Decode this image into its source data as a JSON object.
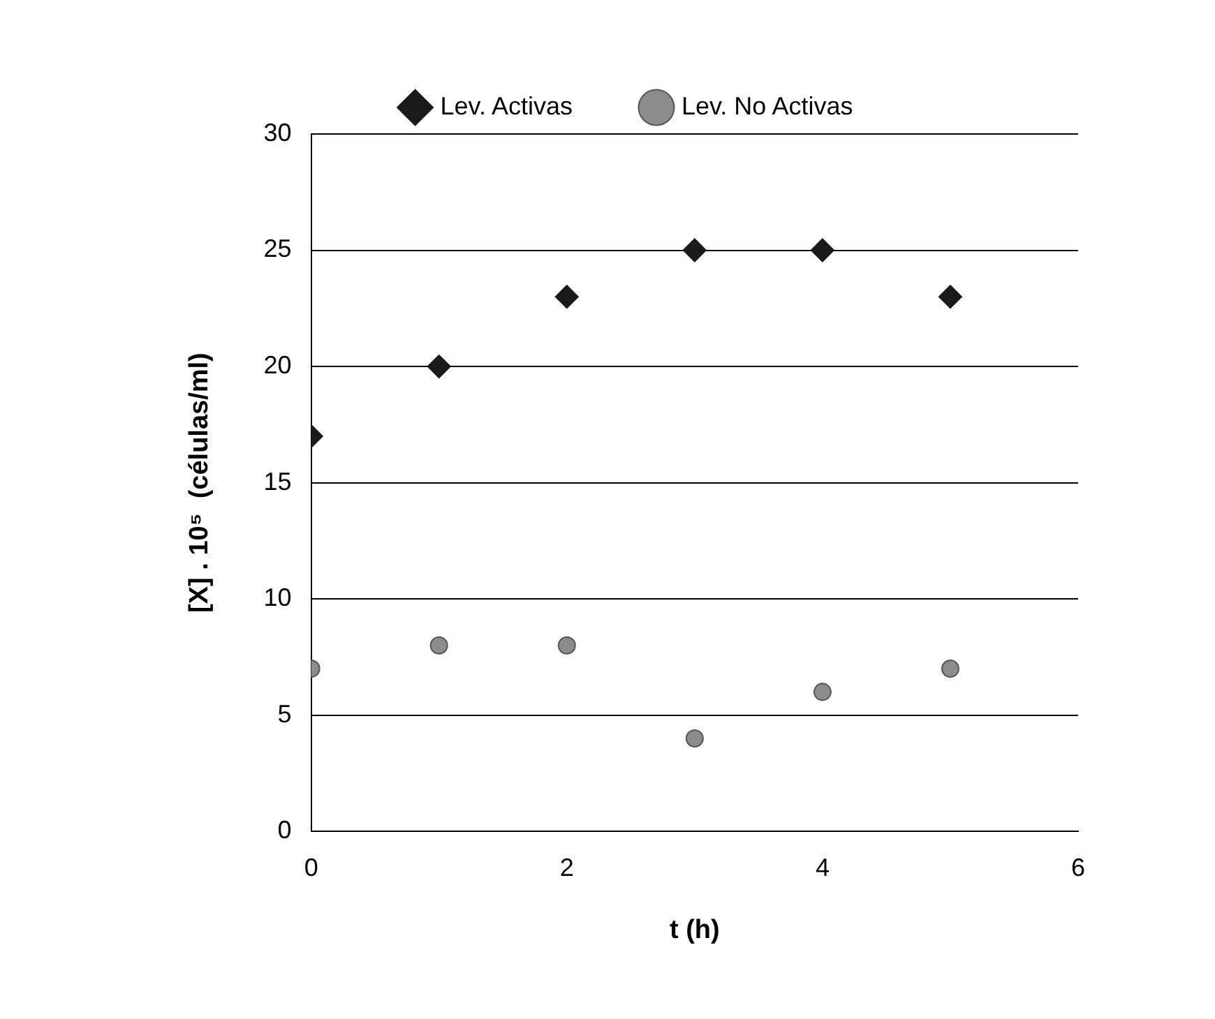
{
  "chart_data": {
    "type": "scatter",
    "xlabel": "t (h)",
    "ylabel": "[X] . 10⁵  (células/ml)",
    "x": [
      0,
      1,
      2,
      3,
      4,
      5
    ],
    "series": [
      {
        "name": "Lev. Activas",
        "color": "#1a1a1a",
        "marker": "diamond",
        "values": [
          17,
          20,
          23,
          25,
          25,
          23
        ]
      },
      {
        "name": "Lev. No Activas",
        "color": "#8c8c8c",
        "marker": "circle",
        "values": [
          7,
          8,
          8,
          4,
          6,
          7
        ]
      }
    ],
    "xlim": [
      0,
      6
    ],
    "xticks": [
      0,
      2,
      4,
      6
    ],
    "ylim": [
      0,
      30
    ],
    "yticks": [
      0,
      5,
      10,
      15,
      20,
      25,
      30
    ],
    "grid": "y",
    "legend": "top"
  }
}
